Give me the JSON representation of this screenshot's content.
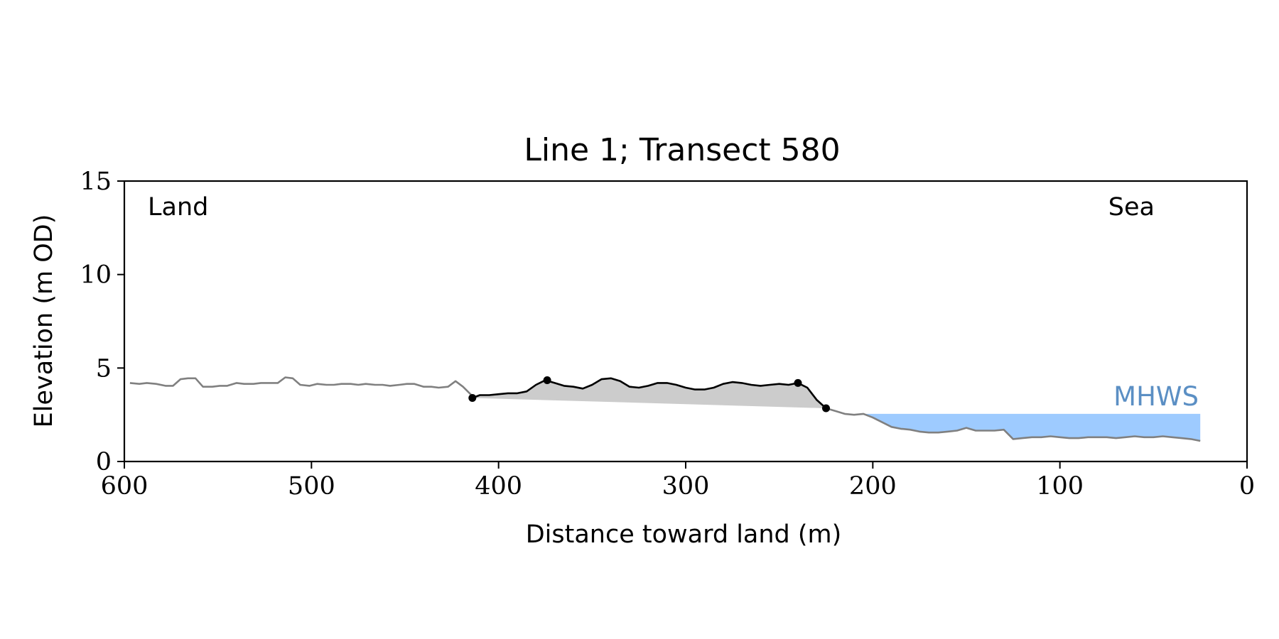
{
  "chart_data": {
    "type": "line",
    "title": "Line 1; Transect 580",
    "xlabel": "Distance toward land (m)",
    "ylabel": "Elevation (m OD)",
    "xlim": [
      600,
      0
    ],
    "ylim": [
      0,
      15
    ],
    "x_ticks": [
      600,
      500,
      400,
      300,
      200,
      100,
      0
    ],
    "y_ticks": [
      0,
      5,
      10,
      15
    ],
    "grid": false,
    "annotations": {
      "left": "Land",
      "right": "Sea",
      "mhws": "MHWS"
    },
    "colors": {
      "profile": "#808080",
      "dune": "#000000",
      "dune_fill": "#cccccc",
      "mhws_fill": "#9ecbff",
      "mhws_text": "#5b8fc4"
    },
    "mhws_level": 2.55,
    "mhws_x_range": [
      205,
      25
    ],
    "profile": {
      "x": [
        597,
        592,
        588,
        583,
        578,
        574,
        570,
        566,
        562,
        558,
        553,
        549,
        545,
        540,
        536,
        531,
        527,
        522,
        518,
        514,
        510,
        506,
        501,
        497,
        492,
        488,
        484,
        479,
        475,
        471,
        466,
        462,
        458,
        453,
        449,
        445,
        440,
        436,
        432,
        427,
        423,
        419,
        414
      ],
      "y": [
        4.2,
        4.15,
        4.2,
        4.15,
        4.05,
        4.05,
        4.4,
        4.45,
        4.45,
        4.0,
        4.0,
        4.05,
        4.05,
        4.2,
        4.15,
        4.15,
        4.2,
        4.2,
        4.2,
        4.5,
        4.45,
        4.1,
        4.05,
        4.15,
        4.1,
        4.1,
        4.15,
        4.15,
        4.1,
        4.15,
        4.1,
        4.1,
        4.05,
        4.1,
        4.15,
        4.15,
        4.0,
        4.0,
        3.95,
        4.0,
        4.3,
        4.0,
        3.5
      ]
    },
    "profile_sea": {
      "x": [
        225,
        220,
        215,
        210,
        205,
        200,
        195,
        190,
        185,
        180,
        175,
        170,
        165,
        160,
        155,
        150,
        145,
        140,
        135,
        130,
        125,
        120,
        115,
        110,
        105,
        100,
        95,
        90,
        85,
        80,
        75,
        70,
        65,
        60,
        55,
        50,
        45,
        40,
        35,
        30,
        25
      ],
      "y": [
        2.85,
        2.7,
        2.55,
        2.5,
        2.55,
        2.35,
        2.1,
        1.85,
        1.75,
        1.7,
        1.6,
        1.55,
        1.55,
        1.6,
        1.65,
        1.8,
        1.65,
        1.65,
        1.65,
        1.7,
        1.2,
        1.25,
        1.3,
        1.3,
        1.35,
        1.3,
        1.25,
        1.25,
        1.3,
        1.3,
        1.3,
        1.25,
        1.3,
        1.35,
        1.3,
        1.3,
        1.35,
        1.3,
        1.25,
        1.2,
        1.1
      ]
    },
    "dune": {
      "x": [
        414,
        410,
        405,
        400,
        395,
        390,
        385,
        380,
        375,
        370,
        365,
        360,
        355,
        350,
        345,
        340,
        335,
        330,
        325,
        320,
        315,
        310,
        305,
        300,
        295,
        290,
        285,
        280,
        275,
        270,
        265,
        260,
        255,
        250,
        245,
        240,
        235,
        230,
        225
      ],
      "y": [
        3.4,
        3.55,
        3.55,
        3.6,
        3.65,
        3.65,
        3.75,
        4.1,
        4.35,
        4.2,
        4.05,
        4.0,
        3.9,
        4.1,
        4.4,
        4.45,
        4.3,
        4.0,
        3.95,
        4.05,
        4.2,
        4.2,
        4.1,
        3.95,
        3.85,
        3.85,
        3.95,
        4.15,
        4.25,
        4.2,
        4.1,
        4.05,
        4.1,
        4.15,
        4.1,
        4.2,
        3.95,
        3.3,
        2.85
      ]
    },
    "dune_markers": {
      "x": [
        414,
        374,
        240,
        225
      ],
      "y": [
        3.4,
        4.35,
        4.2,
        2.85
      ]
    }
  }
}
